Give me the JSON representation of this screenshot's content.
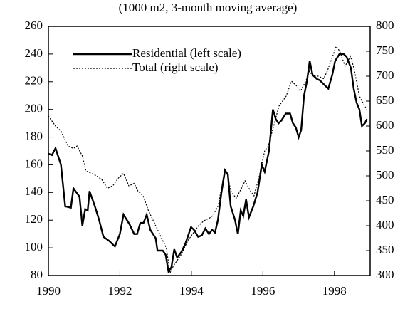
{
  "chart_data": {
    "type": "line",
    "title": "(1000 m2, 3-month moving average)",
    "xlim": [
      1990,
      1999
    ],
    "xticks": [
      1990,
      1992,
      1994,
      1996,
      1998
    ],
    "ylim": [
      80,
      260
    ],
    "yticks": [
      80,
      100,
      120,
      140,
      160,
      180,
      200,
      220,
      240,
      260
    ],
    "y2lim": [
      300,
      800
    ],
    "y2ticks": [
      300,
      350,
      400,
      450,
      500,
      550,
      600,
      650,
      700,
      750,
      800
    ],
    "grid": false,
    "legend": "upper left",
    "series": [
      {
        "name": "Residential (left scale)",
        "color": "#000000",
        "style": "solid",
        "axis": "y",
        "x": [
          1990.0,
          1990.1,
          1990.2,
          1990.35,
          1990.47,
          1990.63,
          1990.7,
          1990.87,
          1990.95,
          1991.03,
          1991.1,
          1991.15,
          1991.3,
          1991.42,
          1991.54,
          1991.7,
          1991.86,
          1992.0,
          1992.1,
          1992.27,
          1992.4,
          1992.48,
          1992.57,
          1992.66,
          1992.75,
          1992.85,
          1993.0,
          1993.05,
          1993.2,
          1993.28,
          1993.36,
          1993.44,
          1993.52,
          1993.6,
          1993.72,
          1993.83,
          1993.99,
          1994.07,
          1994.19,
          1994.29,
          1994.39,
          1994.49,
          1994.58,
          1994.66,
          1994.74,
          1994.84,
          1994.94,
          1995.02,
          1995.1,
          1995.22,
          1995.3,
          1995.38,
          1995.45,
          1995.53,
          1995.61,
          1995.73,
          1995.85,
          1995.97,
          1996.05,
          1996.17,
          1996.28,
          1996.36,
          1996.44,
          1996.52,
          1996.64,
          1996.76,
          1996.84,
          1996.92,
          1997.0,
          1997.07,
          1997.15,
          1997.23,
          1997.31,
          1997.39,
          1997.51,
          1997.59,
          1997.71,
          1997.83,
          1997.94,
          1998.02,
          1998.14,
          1998.26,
          1998.34,
          1998.46,
          1998.54,
          1998.62,
          1998.7,
          1998.77,
          1998.85,
          1998.91
        ],
        "values": [
          168,
          167,
          172,
          160,
          130,
          129,
          143,
          137,
          116,
          128,
          127,
          141,
          130,
          120,
          108,
          105,
          101,
          110,
          124,
          117,
          110,
          110,
          118,
          118,
          124,
          113,
          107,
          98,
          98,
          95,
          83,
          86,
          99,
          93,
          97,
          103,
          115,
          113,
          108,
          109,
          114,
          110,
          113,
          111,
          120,
          140,
          156,
          153,
          130,
          120,
          110,
          127,
          123,
          135,
          122,
          130,
          140,
          160,
          155,
          170,
          200,
          193,
          190,
          192,
          197,
          197,
          190,
          187,
          180,
          185,
          210,
          220,
          235,
          225,
          222,
          221,
          218,
          215,
          225,
          235,
          240,
          240,
          238,
          230,
          215,
          205,
          200,
          188,
          190,
          193
        ]
      },
      {
        "name": "Total (right scale)",
        "color": "#000000",
        "style": "dotted",
        "axis": "y2",
        "x": [
          1990.0,
          1990.2,
          1990.35,
          1990.55,
          1990.7,
          1990.8,
          1990.95,
          1991.05,
          1991.2,
          1991.35,
          1991.5,
          1991.65,
          1991.8,
          1991.95,
          1992.1,
          1992.25,
          1992.4,
          1992.5,
          1992.65,
          1992.8,
          1993.0,
          1993.2,
          1993.3,
          1993.4,
          1993.5,
          1993.7,
          1993.9,
          1994.05,
          1994.2,
          1994.35,
          1994.5,
          1994.6,
          1994.75,
          1994.9,
          1995.0,
          1995.1,
          1995.25,
          1995.4,
          1995.5,
          1995.65,
          1995.75,
          1995.9,
          1996.05,
          1996.15,
          1996.3,
          1996.45,
          1996.65,
          1996.8,
          1996.95,
          1997.05,
          1997.2,
          1997.3,
          1997.4,
          1997.55,
          1997.7,
          1997.8,
          1997.95,
          1998.05,
          1998.15,
          1998.3,
          1998.45,
          1998.55,
          1998.7,
          1998.85,
          1998.93
        ],
        "values": [
          620,
          600,
          590,
          560,
          555,
          560,
          540,
          510,
          505,
          500,
          492,
          475,
          480,
          495,
          505,
          480,
          485,
          470,
          460,
          430,
          400,
          370,
          355,
          305,
          320,
          340,
          370,
          385,
          400,
          410,
          415,
          420,
          440,
          500,
          505,
          470,
          455,
          475,
          490,
          470,
          460,
          500,
          550,
          560,
          600,
          640,
          660,
          690,
          680,
          670,
          690,
          710,
          700,
          700,
          695,
          710,
          740,
          760,
          750,
          720,
          740,
          715,
          660,
          640,
          630
        ]
      }
    ]
  }
}
